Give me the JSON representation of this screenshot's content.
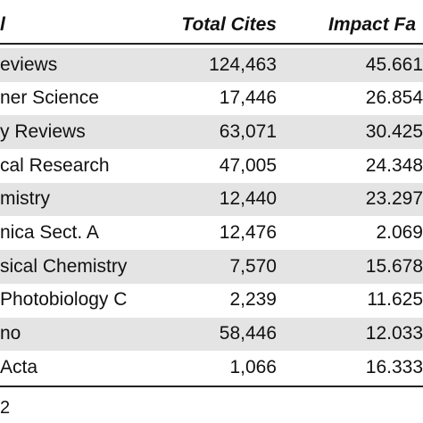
{
  "table": {
    "header": [
      "l",
      "Total Cites",
      "Impact Fa"
    ],
    "rows": [
      [
        "eviews",
        "124,463",
        "45.661"
      ],
      [
        "ner Science",
        "17,446",
        "26.854"
      ],
      [
        "y Reviews",
        "63,071",
        "30.425"
      ],
      [
        "cal Research",
        "47,005",
        "24.348"
      ],
      [
        "mistry",
        "12,440",
        "23.297"
      ],
      [
        "nica Sect. A",
        "12,476",
        "2.069"
      ],
      [
        "sical Chemistry",
        "7,570",
        "15.678"
      ],
      [
        "Photobiology C",
        "2,239",
        "11.625"
      ],
      [
        "no",
        "58,446",
        "12.033"
      ],
      [
        "Acta",
        "1,066",
        "16.333"
      ]
    ],
    "footnote": "2"
  }
}
